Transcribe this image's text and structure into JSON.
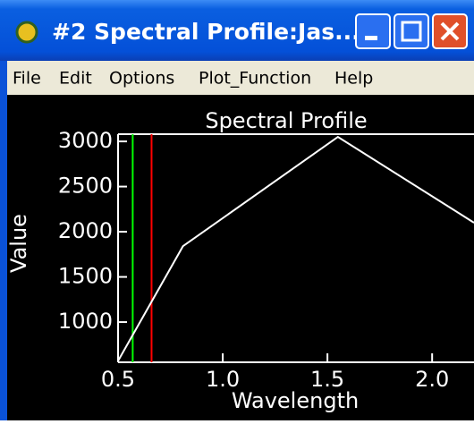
{
  "window": {
    "title": "#2 Spectral Profile:Jas...",
    "menu": [
      "File",
      "Edit",
      "Options",
      "Plot_Function",
      "Help"
    ]
  },
  "chart_data": {
    "type": "line",
    "title": "Spectral Profile",
    "x_label": "Wavelength",
    "y_label": "Value",
    "x": [
      0.5,
      0.81,
      1.55,
      2.2
    ],
    "series": [
      {
        "name": "Value",
        "color": "#ffffff",
        "values": [
          570,
          1840,
          3050,
          2100
        ]
      }
    ],
    "vlines": [
      {
        "x": 0.57,
        "color": "#00ff00"
      },
      {
        "x": 0.66,
        "color": "#ff0000"
      }
    ],
    "xlim": [
      0.5,
      2.2
    ],
    "ylim": [
      555,
      3080
    ],
    "xticks": [
      0.5,
      {
        "value": 1,
        "label": "1.0"
      },
      1.5,
      {
        "value": 2,
        "label": "2.0"
      }
    ],
    "yticks": [
      1000,
      1500,
      2000,
      2500,
      3000
    ]
  }
}
